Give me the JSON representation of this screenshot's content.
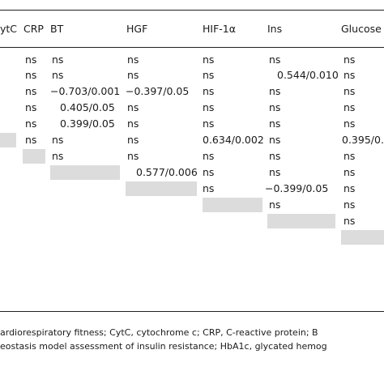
{
  "headers": [
    "ytC",
    "CRP",
    "BT",
    "HGF",
    "HIF-1α",
    "Ins",
    "Glucose"
  ],
  "cells": [
    {
      "text": "ns",
      "col": "CRP"
    },
    {
      "text": "ns",
      "col": "BT"
    },
    {
      "text": "ns",
      "col": "HGF"
    },
    {
      "text": "ns",
      "col": "HIF"
    },
    {
      "text": "ns",
      "col": "Ins"
    },
    {
      "text": "ns",
      "col": "Glu"
    },
    {
      "text": "ns",
      "col": "CRP"
    },
    {
      "text": "ns",
      "col": "BT"
    },
    {
      "text": "ns",
      "col": "HGF"
    },
    {
      "text": "ns",
      "col": "HIF"
    },
    {
      "text": "0.544/0.010",
      "col": "Ins"
    },
    {
      "text": "ns",
      "col": "Glu"
    },
    {
      "text": "ns",
      "col": "CRP"
    },
    {
      "text": "−0.703/0.001",
      "col": "BT"
    },
    {
      "text": "−0.397/0.05",
      "col": "HGF"
    },
    {
      "text": "ns",
      "col": "HIF"
    },
    {
      "text": "ns",
      "col": "Ins"
    },
    {
      "text": "ns",
      "col": "Glu"
    },
    {
      "text": "ns",
      "col": "CRP"
    },
    {
      "text": "0.405/0.05",
      "col": "BT"
    },
    {
      "text": "ns",
      "col": "HGF"
    },
    {
      "text": "ns",
      "col": "HIF"
    },
    {
      "text": "ns",
      "col": "Ins"
    },
    {
      "text": "ns",
      "col": "Glu"
    },
    {
      "text": "ns",
      "col": "CRP"
    },
    {
      "text": "0.399/0.05",
      "col": "BT"
    },
    {
      "text": "ns",
      "col": "HGF"
    },
    {
      "text": "ns",
      "col": "HIF"
    },
    {
      "text": "ns",
      "col": "Ins"
    },
    {
      "text": "ns",
      "col": "Glu"
    },
    {
      "text": "ns",
      "col": "CRP"
    },
    {
      "text": "ns",
      "col": "BT"
    },
    {
      "text": "ns",
      "col": "HGF"
    },
    {
      "text": "0.634/0.002",
      "col": "HIF"
    },
    {
      "text": "ns",
      "col": "Ins"
    },
    {
      "text": "0.395/0.",
      "col": "Glu"
    },
    {
      "text": "ns",
      "col": "BT"
    },
    {
      "text": "ns",
      "col": "HGF"
    },
    {
      "text": "ns",
      "col": "HIF"
    },
    {
      "text": "ns",
      "col": "Ins"
    },
    {
      "text": "ns",
      "col": "Glu"
    },
    {
      "text": "0.577/0.006",
      "col": "HGF"
    },
    {
      "text": "ns",
      "col": "HIF"
    },
    {
      "text": "ns",
      "col": "Ins"
    },
    {
      "text": "ns",
      "col": "Glu"
    },
    {
      "text": "ns",
      "col": "HIF"
    },
    {
      "text": "−0.399/0.05",
      "col": "Ins"
    },
    {
      "text": "ns",
      "col": "Glu"
    },
    {
      "text": "ns",
      "col": "Ins"
    },
    {
      "text": "ns",
      "col": "Glu"
    },
    {
      "text": "ns",
      "col": "Glu"
    }
  ],
  "footnote": {
    "line1": "ardiorespiratory fitness; CytC, cytochrome c; CRP, C-reactive protein; B",
    "line2": "eostasis model assessment of insulin resistance; HbA1c, glycated hemog"
  }
}
